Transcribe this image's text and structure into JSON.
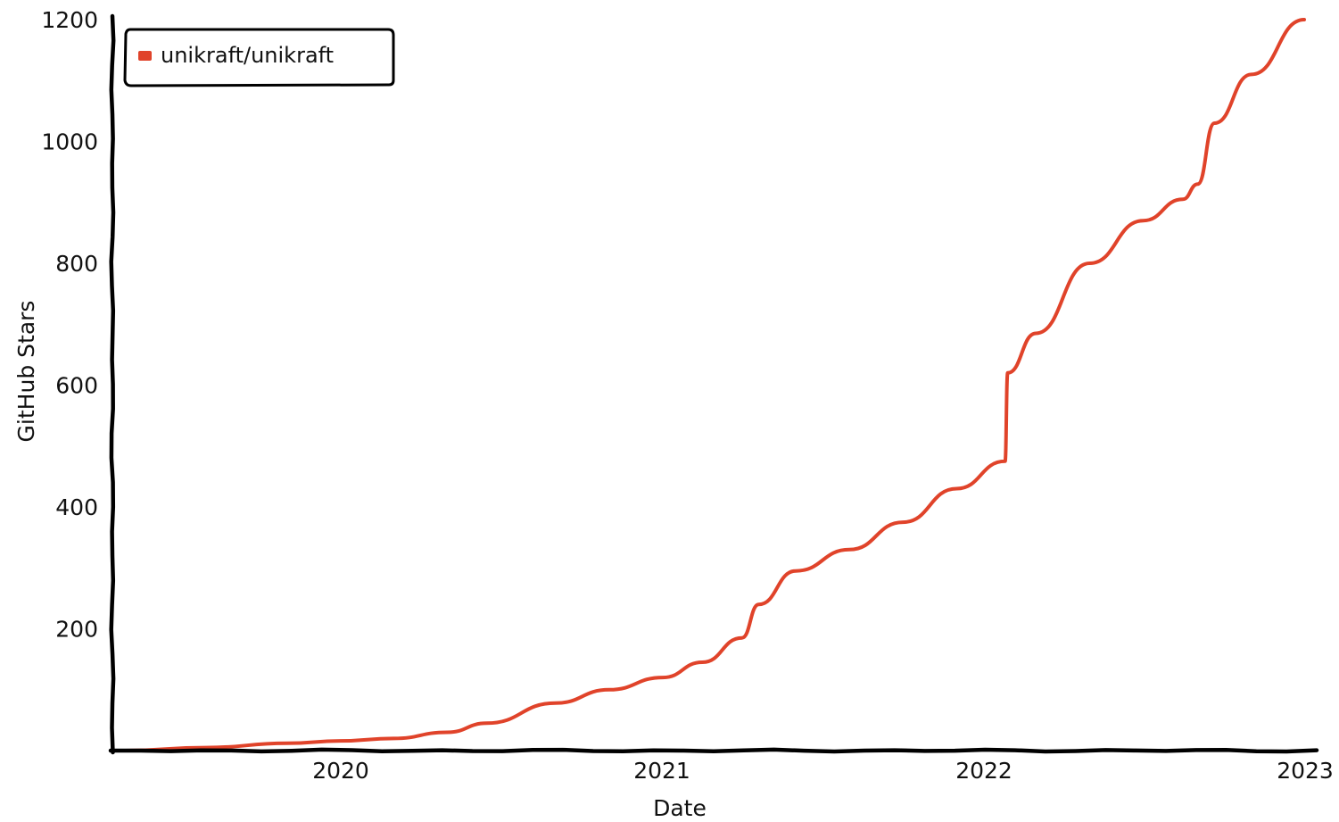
{
  "chart_data": {
    "type": "line",
    "title": "",
    "xlabel": "Date",
    "ylabel": "GitHub Stars",
    "xlim": [
      "2019-05-01",
      "2023-01-01"
    ],
    "ylim": [
      0,
      1200
    ],
    "x_ticks": [
      "2020",
      "2021",
      "2022",
      "2023"
    ],
    "y_ticks": [
      200,
      400,
      600,
      800,
      1000,
      1200
    ],
    "grid": false,
    "legend_position": "top-left",
    "series": [
      {
        "name": "unikraft/unikraft",
        "color": "#e0432a",
        "points": [
          {
            "x": "2019-05-01",
            "y": 0
          },
          {
            "x": "2019-08-01",
            "y": 5
          },
          {
            "x": "2019-11-01",
            "y": 12
          },
          {
            "x": "2020-01-01",
            "y": 16
          },
          {
            "x": "2020-03-01",
            "y": 20
          },
          {
            "x": "2020-05-01",
            "y": 30
          },
          {
            "x": "2020-06-15",
            "y": 45
          },
          {
            "x": "2020-09-01",
            "y": 78
          },
          {
            "x": "2020-11-01",
            "y": 100
          },
          {
            "x": "2021-01-01",
            "y": 120
          },
          {
            "x": "2021-02-15",
            "y": 145
          },
          {
            "x": "2021-04-01",
            "y": 185
          },
          {
            "x": "2021-04-20",
            "y": 240
          },
          {
            "x": "2021-06-01",
            "y": 295
          },
          {
            "x": "2021-08-01",
            "y": 330
          },
          {
            "x": "2021-10-01",
            "y": 375
          },
          {
            "x": "2021-12-01",
            "y": 430
          },
          {
            "x": "2022-01-25",
            "y": 475
          },
          {
            "x": "2022-01-28",
            "y": 620
          },
          {
            "x": "2022-03-01",
            "y": 685
          },
          {
            "x": "2022-05-01",
            "y": 800
          },
          {
            "x": "2022-07-01",
            "y": 870
          },
          {
            "x": "2022-08-15",
            "y": 905
          },
          {
            "x": "2022-09-01",
            "y": 930
          },
          {
            "x": "2022-09-20",
            "y": 1030
          },
          {
            "x": "2022-11-01",
            "y": 1110
          },
          {
            "x": "2022-12-31",
            "y": 1200
          }
        ]
      }
    ]
  }
}
